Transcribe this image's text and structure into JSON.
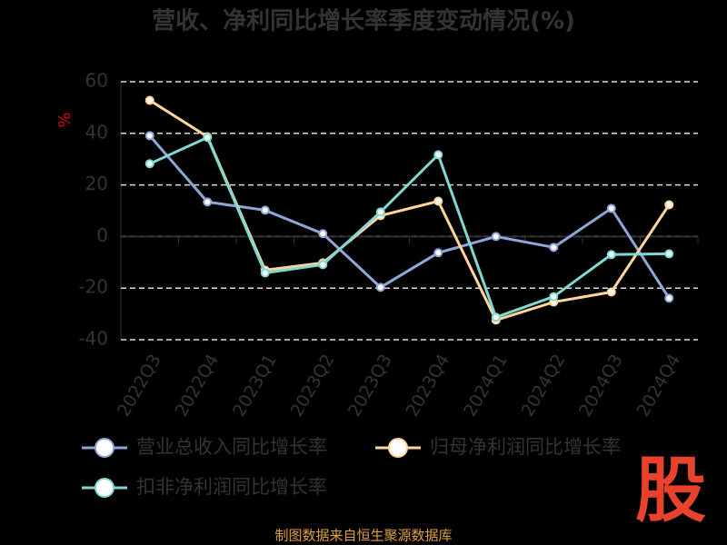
{
  "chart_data": {
    "type": "line",
    "title": "营收、净利同比增长率季度变动情况(%)",
    "y_label": "%",
    "categories": [
      "2022Q3",
      "2022Q4",
      "2023Q1",
      "2023Q2",
      "2023Q3",
      "2023Q4",
      "2024Q1",
      "2024Q2",
      "2024Q3",
      "2024Q4"
    ],
    "series": [
      {
        "name": "营业总收入同比增长率",
        "color": "#8fa6d8",
        "values": [
          39.1,
          13.4,
          10.2,
          1.1,
          -19.7,
          -6.3,
          0.0,
          -4.2,
          10.9,
          -23.9
        ]
      },
      {
        "name": "归母净利润同比增长率",
        "color": "#ffd59a",
        "values": [
          52.8,
          38.7,
          -13.0,
          -10.2,
          8.1,
          13.7,
          -32.4,
          -25.4,
          -21.5,
          12.3
        ]
      },
      {
        "name": "扣非净利润同比增长率",
        "color": "#7fd8d2",
        "values": [
          28.2,
          38.4,
          -14.1,
          -10.9,
          9.5,
          31.7,
          -31.3,
          -23.3,
          -7.0,
          -6.7
        ]
      }
    ],
    "ylim": [
      -40,
      60
    ],
    "yticks": [
      -40,
      -20,
      0,
      20,
      40,
      60
    ],
    "grid": true,
    "footer": "制图数据来自恒生聚源数据库",
    "logo": "股"
  }
}
